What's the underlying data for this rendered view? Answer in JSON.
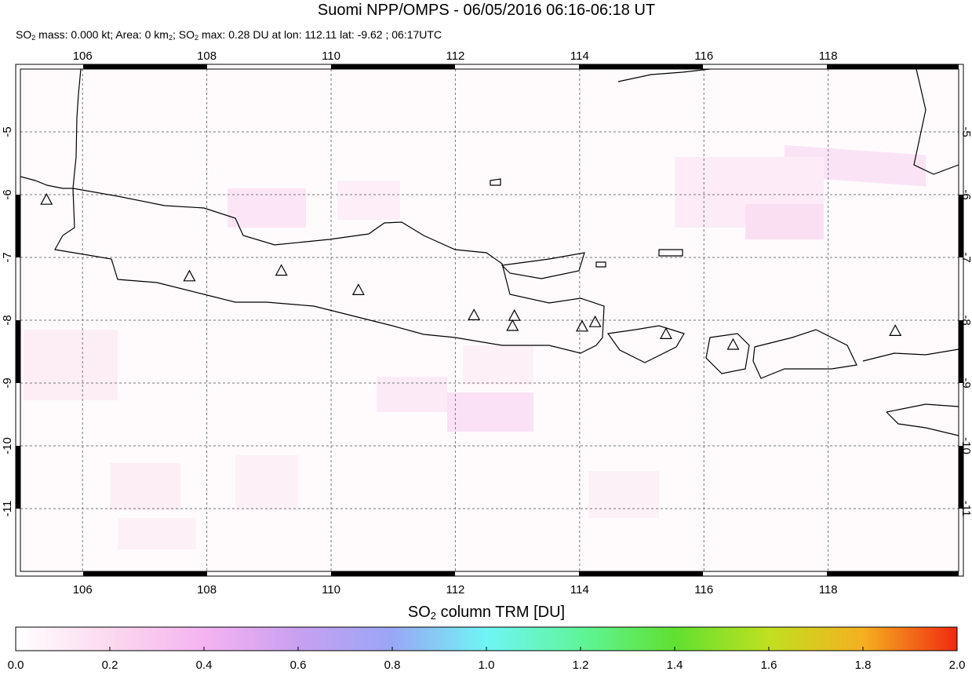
{
  "map": {
    "title": "Suomi NPP/OMPS - 06/05/2016 06:16-06:18 UT",
    "subtitle_parts": [
      "SO",
      "2",
      " mass: 0.000 kt; Area: 0 km",
      "2",
      "; SO",
      "2",
      " max: 0.28 DU at lon: 112.11 lat: -9.62 ; 06:17UTC"
    ],
    "xlim": [
      105,
      120.1
    ],
    "ylim": [
      -12,
      -4
    ],
    "xticks": [
      106,
      108,
      110,
      112,
      114,
      116,
      118
    ],
    "yticks": [
      -5,
      -6,
      -7,
      -8,
      -9,
      -10,
      -11
    ],
    "volcanoes": {
      "lon": [
        105.42,
        107.72,
        109.2,
        110.44,
        112.3,
        112.95,
        112.92,
        114.04,
        114.25,
        115.39,
        116.47,
        119.08
      ],
      "lat": [
        -6.09,
        -7.31,
        -7.22,
        -7.53,
        -7.93,
        -7.94,
        -8.1,
        -8.11,
        -8.04,
        -8.23,
        -8.4,
        -8.18
      ]
    }
  },
  "colorbar": {
    "label_parts": [
      "SO",
      "2",
      " column TRM [DU]"
    ],
    "lim": [
      0,
      2
    ],
    "ticks": [
      {
        "value": 0,
        "label": "0.0"
      },
      {
        "value": 0.2,
        "label": "0.2"
      },
      {
        "value": 0.4,
        "label": "0.4"
      },
      {
        "value": 0.6,
        "label": "0.6"
      },
      {
        "value": 0.8,
        "label": "0.8"
      },
      {
        "value": 1,
        "label": "1.0"
      },
      {
        "value": 1.2,
        "label": "1.2"
      },
      {
        "value": 1.4,
        "label": "1.4"
      },
      {
        "value": 1.6,
        "label": "1.6"
      },
      {
        "value": 1.8,
        "label": "1.8"
      },
      {
        "value": 2,
        "label": "2.0"
      }
    ]
  }
}
